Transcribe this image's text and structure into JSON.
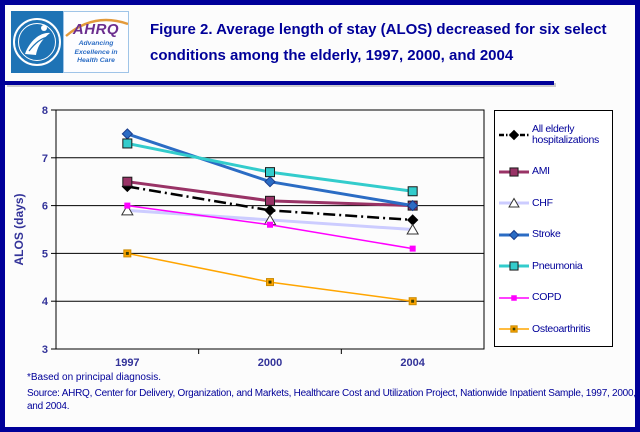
{
  "header": {
    "title": "Figure 2. Average length of stay (ALOS) decreased for six select conditions among the elderly, 1997, 2000, and 2004"
  },
  "logo": {
    "acronym": "AHRQ",
    "tagline": "Advancing Excellence in Health Care",
    "hhs_blue": "#1e73b5",
    "ahrq_purple": "#6b2d8f",
    "arc_orange": "#e39a3b"
  },
  "colors": {
    "frame_navy": "#000099",
    "axis_text": "#333399",
    "gridline": "#000000",
    "legend_text": "#000099"
  },
  "chart_data": {
    "type": "line",
    "title": "",
    "categories": [
      "1997",
      "2000",
      "2004"
    ],
    "series": [
      {
        "name": "All elderly hospitalizations",
        "values": [
          6.4,
          5.9,
          5.7
        ],
        "color": "#000000",
        "width": 2.5,
        "dash": "12 4 2 4",
        "legend_dash": "5 2 1.5 2",
        "marker": "diamond",
        "marker_fill": "#000000",
        "marker_stroke": "#000000"
      },
      {
        "name": "AMI",
        "values": [
          6.5,
          6.1,
          6.0
        ],
        "color": "#993366",
        "width": 3,
        "dash": "",
        "legend_dash": "",
        "marker": "square",
        "marker_fill": "#993366",
        "marker_stroke": "#1a1a1a"
      },
      {
        "name": "CHF",
        "values": [
          5.9,
          5.7,
          5.5
        ],
        "color": "#ccccff",
        "width": 3,
        "dash": "",
        "legend_dash": "",
        "marker": "triangle",
        "marker_fill": "#ffffff",
        "marker_stroke": "#333333"
      },
      {
        "name": "Stroke",
        "values": [
          7.5,
          6.5,
          6.0
        ],
        "color": "#2b6cc4",
        "width": 3,
        "dash": "",
        "legend_dash": "",
        "marker": "diamond",
        "marker_fill": "#2b6cc4",
        "marker_stroke": "#1a3c8c"
      },
      {
        "name": "Pneumonia",
        "values": [
          7.3,
          6.7,
          6.3
        ],
        "color": "#33cccc",
        "width": 3,
        "dash": "",
        "legend_dash": "",
        "marker": "square",
        "marker_fill": "#33cccc",
        "marker_stroke": "#1a1a1a"
      },
      {
        "name": "COPD",
        "values": [
          6.0,
          5.6,
          5.1
        ],
        "color": "#ff00ff",
        "width": 1.5,
        "dash": "",
        "legend_dash": "",
        "marker": "square-small",
        "marker_fill": "#ff00ff",
        "marker_stroke": "#ff00ff"
      },
      {
        "name": "Osteoarthritis",
        "values": [
          5.0,
          4.4,
          4.0
        ],
        "color": "#ffa500",
        "width": 1.5,
        "dash": "",
        "legend_dash": "",
        "marker": "square-dot",
        "marker_fill": "#ffa500",
        "marker_stroke": "#c98a00"
      }
    ],
    "xlabel": "",
    "ylabel": "ALOS (days)",
    "ylim": [
      3,
      8
    ],
    "yticks": [
      3,
      4,
      5,
      6,
      7,
      8
    ],
    "grid": true,
    "legend_position": "right"
  },
  "footnotes": {
    "note": "*Based on principal diagnosis.",
    "source": "Source: AHRQ, Center for Delivery, Organization, and Markets, Healthcare Cost and Utilization Project, Nationwide Inpatient Sample, 1997, 2000, and 2004."
  }
}
